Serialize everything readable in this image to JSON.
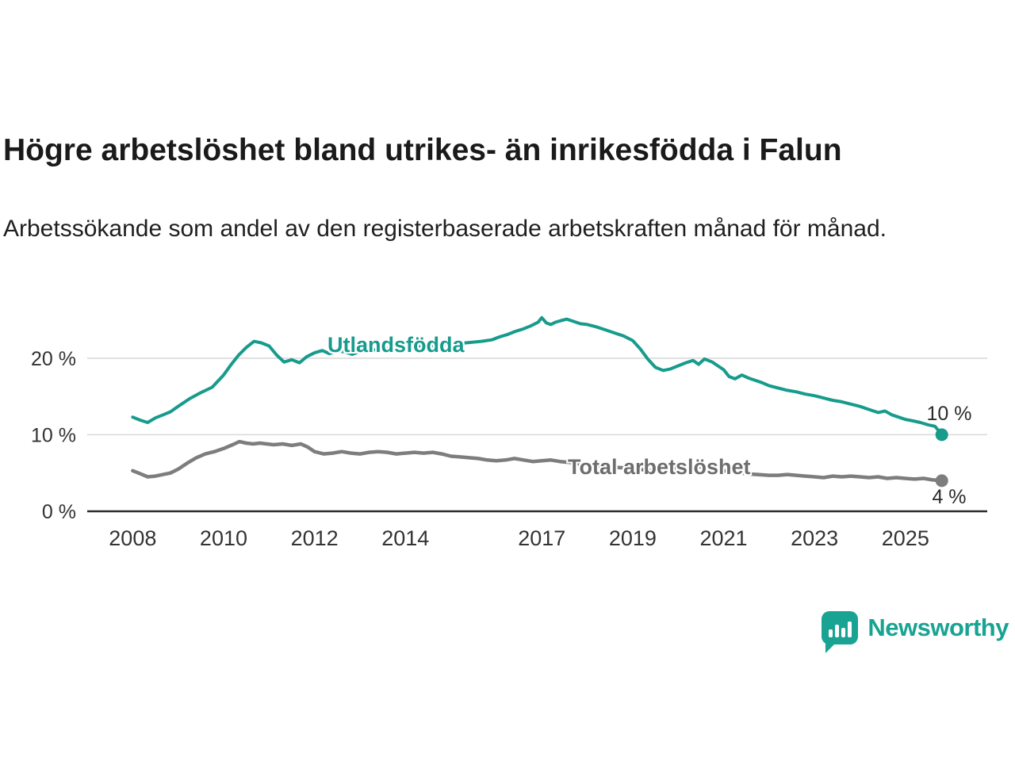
{
  "branding": {
    "name": "Newsworthy",
    "color": "#18a392"
  },
  "chart_data": {
    "type": "line",
    "title": "Högre arbetslöshet bland utrikes- än inrikesfödda i Falun",
    "subtitle": "Arbetssökande som andel av den registerbaserade arbetskraften månad för månad.",
    "xlabel": "",
    "ylabel": "",
    "xlim": [
      2007.0,
      2026.8
    ],
    "ylim": [
      0,
      29.2
    ],
    "grid": true,
    "grid_color": "#d8d8d8",
    "axis_line_color": "#2b2b2b",
    "axis_text_color": "#333333",
    "x_ticks": [
      2008,
      2010,
      2012,
      2014,
      2017,
      2019,
      2021,
      2023,
      2025
    ],
    "y_ticks": [
      {
        "value": 0,
        "label": "0 %"
      },
      {
        "value": 10,
        "label": "10 %"
      },
      {
        "value": 20,
        "label": "20 %"
      }
    ],
    "series": [
      {
        "id": "utlandsfodda",
        "name": "Utlandsfödda",
        "color": "#169b8c",
        "width": 4,
        "end_label": "10 %",
        "points": [
          [
            2008.0,
            12.3
          ],
          [
            2008.17,
            11.9
          ],
          [
            2008.33,
            11.6
          ],
          [
            2008.5,
            12.2
          ],
          [
            2008.67,
            12.6
          ],
          [
            2008.83,
            13.0
          ],
          [
            2009.0,
            13.7
          ],
          [
            2009.25,
            14.7
          ],
          [
            2009.5,
            15.5
          ],
          [
            2009.75,
            16.2
          ],
          [
            2010.0,
            17.8
          ],
          [
            2010.17,
            19.2
          ],
          [
            2010.33,
            20.4
          ],
          [
            2010.5,
            21.4
          ],
          [
            2010.67,
            22.2
          ],
          [
            2010.83,
            22.0
          ],
          [
            2011.0,
            21.6
          ],
          [
            2011.17,
            20.4
          ],
          [
            2011.33,
            19.5
          ],
          [
            2011.5,
            19.8
          ],
          [
            2011.67,
            19.4
          ],
          [
            2011.83,
            20.2
          ],
          [
            2012.0,
            20.7
          ],
          [
            2012.17,
            21.0
          ],
          [
            2012.33,
            20.6
          ],
          [
            2012.5,
            21.0
          ],
          [
            2012.67,
            20.8
          ],
          [
            2012.83,
            20.5
          ],
          [
            2013.0,
            20.9
          ],
          [
            2013.33,
            21.1
          ],
          [
            2013.67,
            21.3
          ],
          [
            2014.0,
            21.5
          ],
          [
            2014.33,
            21.6
          ],
          [
            2014.67,
            21.7
          ],
          [
            2015.0,
            21.9
          ],
          [
            2015.33,
            22.0
          ],
          [
            2015.67,
            22.2
          ],
          [
            2015.9,
            22.4
          ],
          [
            2016.08,
            22.8
          ],
          [
            2016.25,
            23.1
          ],
          [
            2016.42,
            23.5
          ],
          [
            2016.58,
            23.8
          ],
          [
            2016.75,
            24.2
          ],
          [
            2016.92,
            24.7
          ],
          [
            2017.0,
            25.3
          ],
          [
            2017.1,
            24.6
          ],
          [
            2017.2,
            24.4
          ],
          [
            2017.3,
            24.7
          ],
          [
            2017.42,
            24.9
          ],
          [
            2017.55,
            25.1
          ],
          [
            2017.7,
            24.8
          ],
          [
            2017.85,
            24.5
          ],
          [
            2018.0,
            24.4
          ],
          [
            2018.2,
            24.1
          ],
          [
            2018.4,
            23.7
          ],
          [
            2018.6,
            23.3
          ],
          [
            2018.8,
            22.9
          ],
          [
            2019.0,
            22.3
          ],
          [
            2019.17,
            21.2
          ],
          [
            2019.33,
            19.9
          ],
          [
            2019.5,
            18.8
          ],
          [
            2019.67,
            18.4
          ],
          [
            2019.83,
            18.6
          ],
          [
            2020.0,
            19.0
          ],
          [
            2020.17,
            19.4
          ],
          [
            2020.33,
            19.7
          ],
          [
            2020.45,
            19.2
          ],
          [
            2020.58,
            19.9
          ],
          [
            2020.75,
            19.5
          ],
          [
            2020.9,
            18.9
          ],
          [
            2021.0,
            18.5
          ],
          [
            2021.12,
            17.6
          ],
          [
            2021.25,
            17.3
          ],
          [
            2021.4,
            17.8
          ],
          [
            2021.55,
            17.4
          ],
          [
            2021.7,
            17.1
          ],
          [
            2021.85,
            16.8
          ],
          [
            2022.0,
            16.4
          ],
          [
            2022.2,
            16.1
          ],
          [
            2022.4,
            15.8
          ],
          [
            2022.6,
            15.6
          ],
          [
            2022.8,
            15.3
          ],
          [
            2023.0,
            15.1
          ],
          [
            2023.2,
            14.8
          ],
          [
            2023.4,
            14.5
          ],
          [
            2023.6,
            14.3
          ],
          [
            2023.8,
            14.0
          ],
          [
            2024.0,
            13.7
          ],
          [
            2024.2,
            13.3
          ],
          [
            2024.4,
            12.9
          ],
          [
            2024.55,
            13.1
          ],
          [
            2024.7,
            12.6
          ],
          [
            2024.85,
            12.3
          ],
          [
            2025.0,
            12.0
          ],
          [
            2025.17,
            11.8
          ],
          [
            2025.33,
            11.6
          ],
          [
            2025.5,
            11.3
          ],
          [
            2025.65,
            11.1
          ],
          [
            2025.8,
            10.0
          ]
        ]
      },
      {
        "id": "total",
        "name": "Total arbetslöshet",
        "color": "#7d7d7d",
        "width": 4.5,
        "end_label": "4 %",
        "points": [
          [
            2008.0,
            5.3
          ],
          [
            2008.17,
            4.9
          ],
          [
            2008.33,
            4.5
          ],
          [
            2008.5,
            4.6
          ],
          [
            2008.67,
            4.8
          ],
          [
            2008.83,
            5.0
          ],
          [
            2009.0,
            5.5
          ],
          [
            2009.2,
            6.3
          ],
          [
            2009.4,
            7.0
          ],
          [
            2009.6,
            7.5
          ],
          [
            2009.8,
            7.8
          ],
          [
            2010.0,
            8.2
          ],
          [
            2010.2,
            8.7
          ],
          [
            2010.35,
            9.1
          ],
          [
            2010.5,
            8.9
          ],
          [
            2010.65,
            8.8
          ],
          [
            2010.8,
            8.9
          ],
          [
            2010.95,
            8.8
          ],
          [
            2011.1,
            8.7
          ],
          [
            2011.3,
            8.8
          ],
          [
            2011.5,
            8.6
          ],
          [
            2011.7,
            8.8
          ],
          [
            2011.85,
            8.4
          ],
          [
            2012.0,
            7.8
          ],
          [
            2012.2,
            7.5
          ],
          [
            2012.4,
            7.6
          ],
          [
            2012.6,
            7.8
          ],
          [
            2012.8,
            7.6
          ],
          [
            2013.0,
            7.5
          ],
          [
            2013.2,
            7.7
          ],
          [
            2013.4,
            7.8
          ],
          [
            2013.6,
            7.7
          ],
          [
            2013.8,
            7.5
          ],
          [
            2014.0,
            7.6
          ],
          [
            2014.2,
            7.7
          ],
          [
            2014.4,
            7.6
          ],
          [
            2014.6,
            7.7
          ],
          [
            2014.8,
            7.5
          ],
          [
            2015.0,
            7.2
          ],
          [
            2015.2,
            7.1
          ],
          [
            2015.4,
            7.0
          ],
          [
            2015.6,
            6.9
          ],
          [
            2015.8,
            6.7
          ],
          [
            2016.0,
            6.6
          ],
          [
            2016.2,
            6.7
          ],
          [
            2016.4,
            6.9
          ],
          [
            2016.6,
            6.7
          ],
          [
            2016.8,
            6.5
          ],
          [
            2017.0,
            6.6
          ],
          [
            2017.2,
            6.7
          ],
          [
            2017.4,
            6.5
          ],
          [
            2017.6,
            6.4
          ],
          [
            2017.8,
            6.2
          ],
          [
            2018.0,
            6.1
          ],
          [
            2018.25,
            5.9
          ],
          [
            2018.5,
            5.8
          ],
          [
            2018.75,
            5.7
          ],
          [
            2019.0,
            5.6
          ],
          [
            2019.25,
            5.4
          ],
          [
            2019.5,
            5.3
          ],
          [
            2019.75,
            5.4
          ],
          [
            2020.0,
            5.7
          ],
          [
            2020.25,
            5.9
          ],
          [
            2020.5,
            5.8
          ],
          [
            2020.75,
            5.6
          ],
          [
            2021.0,
            5.3
          ],
          [
            2021.25,
            5.1
          ],
          [
            2021.5,
            4.9
          ],
          [
            2021.75,
            4.8
          ],
          [
            2022.0,
            4.7
          ],
          [
            2022.2,
            4.7
          ],
          [
            2022.4,
            4.8
          ],
          [
            2022.6,
            4.7
          ],
          [
            2022.8,
            4.6
          ],
          [
            2023.0,
            4.5
          ],
          [
            2023.2,
            4.4
          ],
          [
            2023.4,
            4.6
          ],
          [
            2023.6,
            4.5
          ],
          [
            2023.8,
            4.6
          ],
          [
            2024.0,
            4.5
          ],
          [
            2024.2,
            4.4
          ],
          [
            2024.4,
            4.5
          ],
          [
            2024.6,
            4.3
          ],
          [
            2024.8,
            4.4
          ],
          [
            2025.0,
            4.3
          ],
          [
            2025.2,
            4.2
          ],
          [
            2025.4,
            4.3
          ],
          [
            2025.6,
            4.1
          ],
          [
            2025.8,
            4.0
          ]
        ]
      }
    ]
  }
}
